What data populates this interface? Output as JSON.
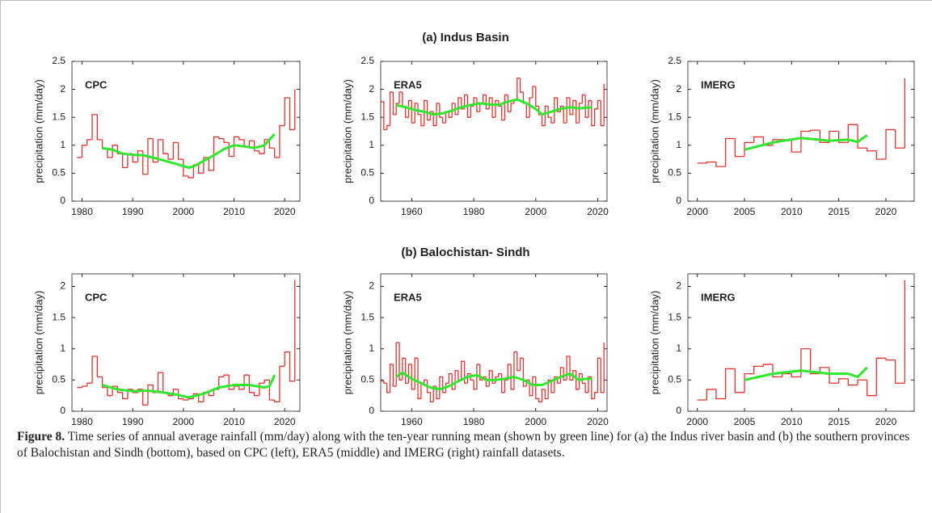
{
  "row_titles": [
    "(a) Indus Basin",
    "(b) Balochistan- Sindh"
  ],
  "chart_data": [
    {
      "type": "step",
      "label": "CPC",
      "ylabel": "precipitation (mm/day)",
      "xlim": [
        1978,
        2023
      ],
      "xticks": [
        1980,
        1990,
        2000,
        2010,
        2020
      ],
      "ylim": [
        0,
        2.5
      ],
      "yticks": [
        0,
        0.5,
        1,
        1.5,
        2,
        2.5
      ],
      "series": [
        {
          "color": "#e8322d",
          "x": [
            1979,
            1980,
            1981,
            1982,
            1983,
            1984,
            1985,
            1986,
            1987,
            1988,
            1989,
            1990,
            1991,
            1992,
            1993,
            1994,
            1995,
            1996,
            1997,
            1998,
            1999,
            2000,
            2001,
            2002,
            2003,
            2004,
            2005,
            2006,
            2007,
            2008,
            2009,
            2010,
            2011,
            2012,
            2013,
            2014,
            2015,
            2016,
            2017,
            2018,
            2019,
            2020,
            2021,
            2022
          ],
          "values": [
            0.78,
            1.0,
            1.1,
            1.55,
            1.1,
            0.95,
            0.78,
            1.0,
            0.85,
            0.6,
            0.85,
            0.7,
            0.9,
            0.48,
            1.12,
            0.7,
            1.1,
            0.85,
            0.75,
            1.05,
            0.75,
            0.45,
            0.42,
            0.65,
            0.5,
            0.78,
            0.55,
            1.15,
            1.12,
            1.05,
            0.8,
            1.15,
            1.1,
            0.98,
            1.08,
            0.9,
            0.85,
            1.1,
            0.95,
            0.78,
            1.35,
            1.85,
            1.28,
            2.0
          ]
        },
        {
          "color": "#2ee82e",
          "x": [
            1984,
            1986,
            1988,
            1990,
            1992,
            1994,
            1996,
            1998,
            2000,
            2001,
            2002,
            2004,
            2006,
            2008,
            2010,
            2012,
            2014,
            2016,
            2018
          ],
          "values": [
            0.95,
            0.92,
            0.85,
            0.83,
            0.82,
            0.78,
            0.73,
            0.68,
            0.63,
            0.6,
            0.62,
            0.72,
            0.82,
            0.93,
            1.0,
            0.98,
            0.95,
            1.0,
            1.2
          ]
        }
      ]
    },
    {
      "type": "step",
      "label": "ERA5",
      "ylabel": "precipitation (mm/day)",
      "xlim": [
        1950,
        2023
      ],
      "xticks": [
        1960,
        1980,
        2000,
        2020
      ],
      "ylim": [
        0,
        2.5
      ],
      "yticks": [
        0,
        0.5,
        1,
        1.5,
        2,
        2.5
      ],
      "series": [
        {
          "color": "#e8322d",
          "x": [
            1950,
            1951,
            1952,
            1953,
            1954,
            1955,
            1956,
            1957,
            1958,
            1959,
            1960,
            1961,
            1962,
            1963,
            1964,
            1965,
            1966,
            1967,
            1968,
            1969,
            1970,
            1971,
            1972,
            1973,
            1974,
            1975,
            1976,
            1977,
            1978,
            1979,
            1980,
            1981,
            1982,
            1983,
            1984,
            1985,
            1986,
            1987,
            1988,
            1989,
            1990,
            1991,
            1992,
            1993,
            1994,
            1995,
            1996,
            1997,
            1998,
            1999,
            2000,
            2001,
            2002,
            2003,
            2004,
            2005,
            2006,
            2007,
            2008,
            2009,
            2010,
            2011,
            2012,
            2013,
            2014,
            2015,
            2016,
            2017,
            2018,
            2019,
            2020,
            2021,
            2022
          ],
          "values": [
            1.78,
            1.28,
            1.35,
            1.95,
            1.55,
            1.75,
            1.95,
            1.7,
            1.5,
            1.8,
            1.4,
            1.75,
            1.55,
            1.35,
            1.8,
            1.45,
            1.6,
            1.35,
            1.75,
            1.5,
            1.4,
            1.6,
            1.5,
            1.75,
            1.55,
            1.85,
            1.65,
            1.9,
            1.5,
            1.7,
            1.85,
            1.6,
            1.75,
            1.9,
            1.65,
            1.85,
            1.5,
            1.8,
            1.7,
            1.45,
            1.9,
            1.6,
            1.75,
            1.8,
            2.2,
            1.95,
            1.75,
            1.5,
            1.85,
            2.05,
            1.7,
            1.55,
            1.35,
            1.7,
            1.5,
            1.4,
            1.85,
            1.6,
            1.7,
            1.4,
            1.85,
            1.55,
            1.8,
            1.4,
            1.75,
            1.9,
            1.5,
            1.8,
            1.35,
            1.65,
            1.8,
            1.35,
            2.1
          ]
        },
        {
          "color": "#2ee82e",
          "x": [
            1955,
            1958,
            1961,
            1964,
            1967,
            1970,
            1973,
            1976,
            1979,
            1982,
            1985,
            1988,
            1991,
            1994,
            1997,
            2000,
            2002,
            2005,
            2008,
            2011,
            2014,
            2018
          ],
          "values": [
            1.72,
            1.68,
            1.63,
            1.6,
            1.55,
            1.57,
            1.62,
            1.68,
            1.72,
            1.75,
            1.73,
            1.72,
            1.78,
            1.82,
            1.75,
            1.65,
            1.55,
            1.6,
            1.65,
            1.68,
            1.66,
            1.68
          ]
        }
      ]
    },
    {
      "type": "step",
      "label": "IMERG",
      "ylabel": "precipitation (mm/day)",
      "xlim": [
        1999,
        2023
      ],
      "xticks": [
        2000,
        2005,
        2010,
        2015,
        2020
      ],
      "ylim": [
        0,
        2.5
      ],
      "yticks": [
        0,
        0.5,
        1,
        1.5,
        2,
        2.5
      ],
      "series": [
        {
          "color": "#e8322d",
          "x": [
            2000,
            2001,
            2002,
            2003,
            2004,
            2005,
            2006,
            2007,
            2008,
            2009,
            2010,
            2011,
            2012,
            2013,
            2014,
            2015,
            2016,
            2017,
            2018,
            2019,
            2020,
            2021,
            2022
          ],
          "values": [
            0.68,
            0.7,
            0.62,
            1.12,
            0.8,
            1.05,
            1.15,
            1.0,
            1.1,
            1.1,
            0.88,
            1.25,
            1.27,
            1.05,
            1.25,
            1.05,
            1.37,
            0.95,
            0.9,
            0.75,
            1.28,
            0.95,
            2.2
          ]
        },
        {
          "color": "#2ee82e",
          "x": [
            2005,
            2008,
            2011,
            2014,
            2016,
            2017,
            2018
          ],
          "values": [
            0.92,
            1.05,
            1.13,
            1.08,
            1.1,
            1.06,
            1.18
          ]
        }
      ]
    },
    {
      "type": "step",
      "label": "CPC",
      "ylabel": "precipitation (mm/day)",
      "xlim": [
        1978,
        2023
      ],
      "xticks": [
        1980,
        1990,
        2000,
        2010,
        2020
      ],
      "ylim": [
        0,
        2.2
      ],
      "yticks": [
        0,
        0.5,
        1,
        1.5,
        2
      ],
      "series": [
        {
          "color": "#e8322d",
          "x": [
            1979,
            1980,
            1981,
            1982,
            1983,
            1984,
            1985,
            1986,
            1987,
            1988,
            1989,
            1990,
            1991,
            1992,
            1993,
            1994,
            1995,
            1996,
            1997,
            1998,
            1999,
            2000,
            2001,
            2002,
            2003,
            2004,
            2005,
            2006,
            2007,
            2008,
            2009,
            2010,
            2011,
            2012,
            2013,
            2014,
            2015,
            2016,
            2017,
            2018,
            2019,
            2020,
            2021,
            2022
          ],
          "values": [
            0.38,
            0.4,
            0.45,
            0.88,
            0.55,
            0.38,
            0.25,
            0.4,
            0.3,
            0.2,
            0.35,
            0.3,
            0.35,
            0.1,
            0.42,
            0.3,
            0.62,
            0.3,
            0.25,
            0.35,
            0.2,
            0.18,
            0.2,
            0.28,
            0.15,
            0.3,
            0.25,
            0.35,
            0.55,
            0.58,
            0.35,
            0.4,
            0.35,
            0.58,
            0.3,
            0.25,
            0.45,
            0.5,
            0.18,
            0.15,
            0.72,
            0.95,
            0.48,
            2.1
          ]
        },
        {
          "color": "#2ee82e",
          "x": [
            1984,
            1987,
            1990,
            1993,
            1996,
            1999,
            2001,
            2004,
            2007,
            2010,
            2013,
            2016,
            2017,
            2018
          ],
          "values": [
            0.42,
            0.35,
            0.32,
            0.33,
            0.3,
            0.26,
            0.22,
            0.28,
            0.38,
            0.42,
            0.42,
            0.38,
            0.4,
            0.58
          ]
        }
      ]
    },
    {
      "type": "step",
      "label": "ERA5",
      "ylabel": "precipitation (mm/day)",
      "xlim": [
        1950,
        2023
      ],
      "xticks": [
        1960,
        1980,
        2000,
        2020
      ],
      "ylim": [
        0,
        2.2
      ],
      "yticks": [
        0,
        0.5,
        1,
        1.5,
        2
      ],
      "series": [
        {
          "color": "#e8322d",
          "x": [
            1950,
            1951,
            1952,
            1953,
            1954,
            1955,
            1956,
            1957,
            1958,
            1959,
            1960,
            1961,
            1962,
            1963,
            1964,
            1965,
            1966,
            1967,
            1968,
            1969,
            1970,
            1971,
            1972,
            1973,
            1974,
            1975,
            1976,
            1977,
            1978,
            1979,
            1980,
            1981,
            1982,
            1983,
            1984,
            1985,
            1986,
            1987,
            1988,
            1989,
            1990,
            1991,
            1992,
            1993,
            1994,
            1995,
            1996,
            1997,
            1998,
            1999,
            2000,
            2001,
            2002,
            2003,
            2004,
            2005,
            2006,
            2007,
            2008,
            2009,
            2010,
            2011,
            2012,
            2013,
            2014,
            2015,
            2016,
            2017,
            2018,
            2019,
            2020,
            2021,
            2022
          ],
          "values": [
            0.48,
            0.45,
            0.3,
            0.75,
            0.4,
            1.1,
            0.5,
            0.85,
            0.45,
            0.75,
            0.35,
            0.85,
            0.2,
            0.45,
            0.5,
            0.3,
            0.15,
            0.4,
            0.2,
            0.55,
            0.3,
            0.45,
            0.6,
            0.35,
            0.65,
            0.5,
            0.8,
            0.45,
            0.6,
            0.5,
            0.35,
            0.75,
            0.5,
            0.55,
            0.4,
            0.65,
            0.45,
            0.55,
            0.6,
            0.3,
            0.5,
            0.75,
            0.35,
            0.95,
            0.65,
            0.85,
            0.4,
            0.5,
            0.25,
            0.55,
            0.2,
            0.15,
            0.35,
            0.2,
            0.5,
            0.3,
            0.55,
            0.45,
            0.7,
            0.5,
            0.88,
            0.5,
            0.65,
            0.35,
            0.6,
            0.45,
            0.3,
            0.55,
            0.2,
            0.3,
            0.85,
            0.3,
            1.1
          ]
        },
        {
          "color": "#2ee82e",
          "x": [
            1955,
            1957,
            1960,
            1963,
            1966,
            1969,
            1972,
            1975,
            1978,
            1981,
            1984,
            1987,
            1990,
            1993,
            1996,
            1999,
            2002,
            2005,
            2008,
            2011,
            2014,
            2016,
            2018
          ],
          "values": [
            0.55,
            0.62,
            0.52,
            0.45,
            0.38,
            0.35,
            0.4,
            0.48,
            0.55,
            0.58,
            0.5,
            0.5,
            0.52,
            0.55,
            0.5,
            0.42,
            0.42,
            0.48,
            0.55,
            0.6,
            0.5,
            0.52,
            0.52
          ]
        }
      ]
    },
    {
      "type": "step",
      "label": "IMERG",
      "ylabel": "precipitation (mm/day)",
      "xlim": [
        1999,
        2023
      ],
      "xticks": [
        2000,
        2005,
        2010,
        2015,
        2020
      ],
      "ylim": [
        0,
        2.2
      ],
      "yticks": [
        0,
        0.5,
        1,
        1.5,
        2
      ],
      "series": [
        {
          "color": "#e8322d",
          "x": [
            2000,
            2001,
            2002,
            2003,
            2004,
            2005,
            2006,
            2007,
            2008,
            2009,
            2010,
            2011,
            2012,
            2013,
            2014,
            2015,
            2016,
            2017,
            2018,
            2019,
            2020,
            2021,
            2022
          ],
          "values": [
            0.18,
            0.35,
            0.2,
            0.68,
            0.3,
            0.6,
            0.72,
            0.75,
            0.55,
            0.6,
            0.55,
            1.0,
            0.6,
            0.7,
            0.45,
            0.52,
            0.42,
            0.5,
            0.25,
            0.85,
            0.82,
            0.45,
            2.1
          ]
        },
        {
          "color": "#2ee82e",
          "x": [
            2005,
            2008,
            2011,
            2014,
            2016,
            2017,
            2018
          ],
          "values": [
            0.5,
            0.6,
            0.65,
            0.6,
            0.6,
            0.55,
            0.7
          ]
        }
      ]
    }
  ],
  "caption": {
    "label": "Figure 8.",
    "text": "Time series of annual average rainfall (mm/day) along with the ten-year running mean (shown by green line) for (a) the Indus river basin and (b) the southern provinces of Balochistan and Sindh (bottom), based on CPC (left), ERA5 (middle) and IMERG (right) rainfall datasets."
  }
}
